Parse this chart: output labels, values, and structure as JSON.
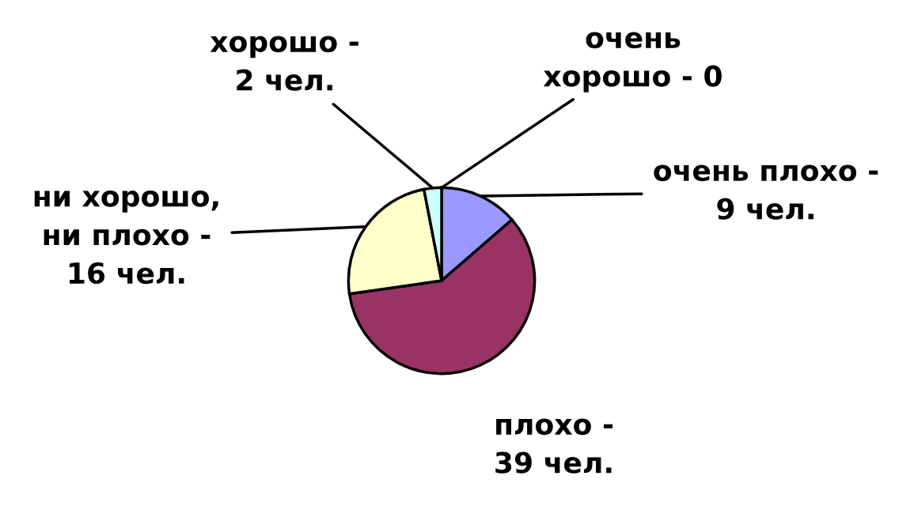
{
  "chart_data": {
    "type": "pie",
    "categories": [
      "очень\nхорошо - 0",
      "очень плохо -\n9 чел.",
      "плохо -\n39 чел.",
      "ни хорошо,\nни плохо -\n16 чел.",
      "хорошо -\n2 чел."
    ],
    "values": [
      0,
      9,
      39,
      16,
      2
    ],
    "colors": [
      "#99ccff",
      "#9999ff",
      "#993366",
      "#ffffcc",
      "#ccffff"
    ]
  }
}
